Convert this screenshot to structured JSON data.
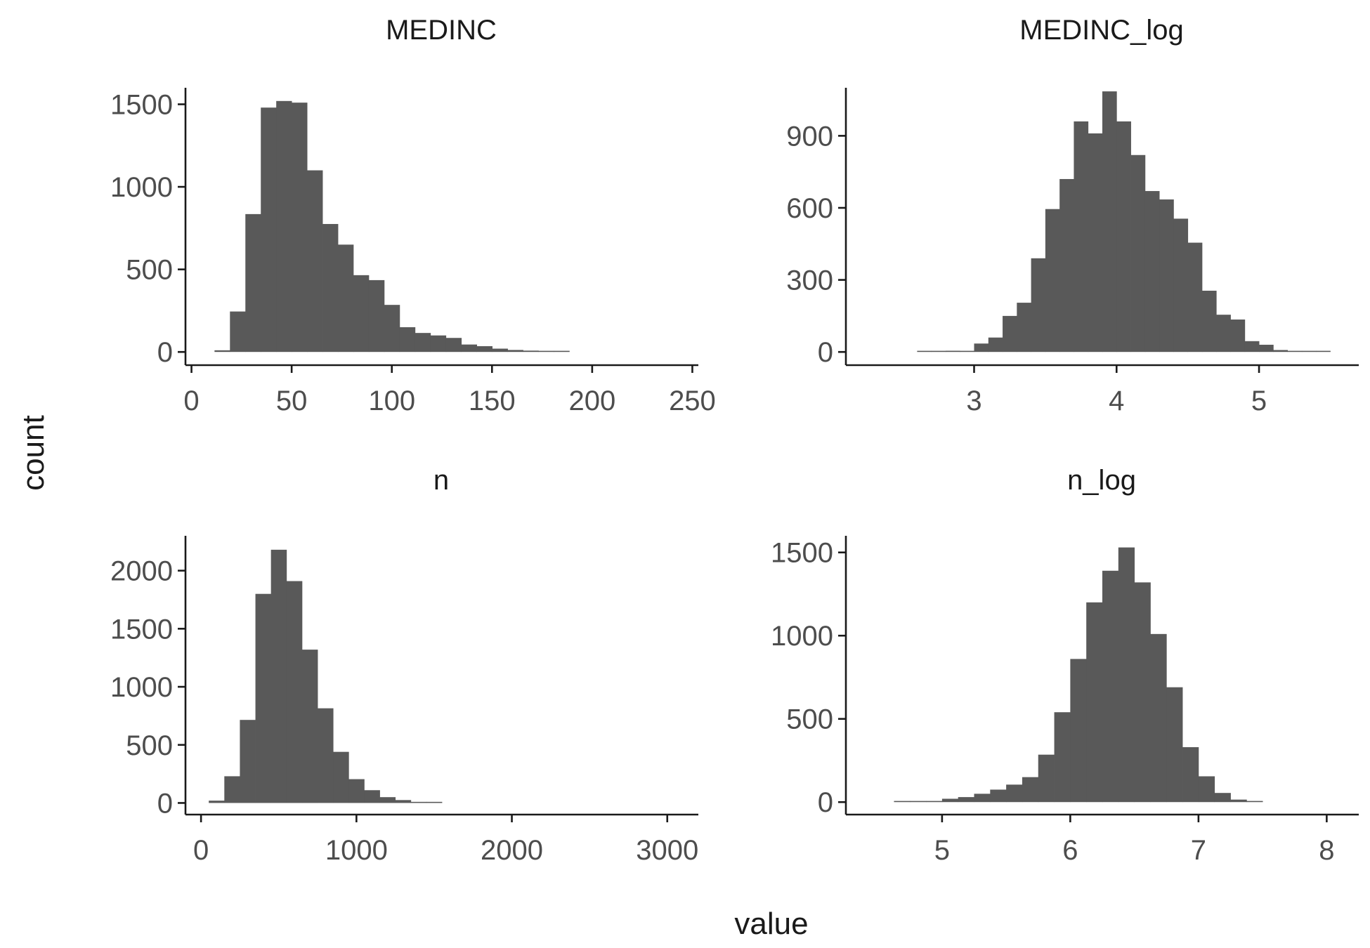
{
  "figure": {
    "ylabel": "count",
    "xlabel": "value"
  },
  "chart_data": [
    {
      "type": "bar",
      "title": "MEDINC",
      "xlim": [
        -3,
        253
      ],
      "ylim": [
        -80,
        1600
      ],
      "x_ticks": [
        0,
        50,
        100,
        150,
        200,
        250
      ],
      "y_ticks": [
        0,
        500,
        1000,
        1500
      ],
      "bin_width": 7.7,
      "bins": [
        {
          "x0": 11.5,
          "x1": 19.2,
          "count": 10
        },
        {
          "x0": 19.2,
          "x1": 26.9,
          "count": 245
        },
        {
          "x0": 26.9,
          "x1": 34.6,
          "count": 835
        },
        {
          "x0": 34.6,
          "x1": 42.3,
          "count": 1480
        },
        {
          "x0": 42.3,
          "x1": 50.0,
          "count": 1520
        },
        {
          "x0": 50.0,
          "x1": 57.7,
          "count": 1510
        },
        {
          "x0": 57.7,
          "x1": 65.4,
          "count": 1100
        },
        {
          "x0": 65.4,
          "x1": 73.1,
          "count": 775
        },
        {
          "x0": 73.1,
          "x1": 80.8,
          "count": 650
        },
        {
          "x0": 80.8,
          "x1": 88.5,
          "count": 465
        },
        {
          "x0": 88.5,
          "x1": 96.2,
          "count": 435
        },
        {
          "x0": 96.2,
          "x1": 103.9,
          "count": 285
        },
        {
          "x0": 103.9,
          "x1": 111.6,
          "count": 150
        },
        {
          "x0": 111.6,
          "x1": 119.3,
          "count": 115
        },
        {
          "x0": 119.3,
          "x1": 127.0,
          "count": 100
        },
        {
          "x0": 127.0,
          "x1": 134.7,
          "count": 85
        },
        {
          "x0": 134.7,
          "x1": 142.4,
          "count": 45
        },
        {
          "x0": 142.4,
          "x1": 150.1,
          "count": 35
        },
        {
          "x0": 150.1,
          "x1": 157.8,
          "count": 20
        },
        {
          "x0": 157.8,
          "x1": 165.5,
          "count": 12
        },
        {
          "x0": 165.5,
          "x1": 173.2,
          "count": 8
        },
        {
          "x0": 173.2,
          "x1": 180.9,
          "count": 0
        },
        {
          "x0": 180.9,
          "x1": 188.6,
          "count": 6
        }
      ]
    },
    {
      "type": "bar",
      "title": "MEDINC_log",
      "xlim": [
        2.1,
        5.7
      ],
      "ylim": [
        -55,
        1100
      ],
      "x_ticks": [
        3,
        4,
        5
      ],
      "y_ticks": [
        0,
        300,
        600,
        900
      ],
      "bin_width": 0.1,
      "bins": [
        {
          "x0": 2.6,
          "x1": 2.7,
          "count": 2
        },
        {
          "x0": 2.7,
          "x1": 2.8,
          "count": 0
        },
        {
          "x0": 2.8,
          "x1": 2.9,
          "count": 5
        },
        {
          "x0": 2.9,
          "x1": 3.0,
          "count": 3
        },
        {
          "x0": 3.0,
          "x1": 3.1,
          "count": 35
        },
        {
          "x0": 3.1,
          "x1": 3.2,
          "count": 60
        },
        {
          "x0": 3.2,
          "x1": 3.3,
          "count": 150
        },
        {
          "x0": 3.3,
          "x1": 3.4,
          "count": 205
        },
        {
          "x0": 3.4,
          "x1": 3.5,
          "count": 390
        },
        {
          "x0": 3.5,
          "x1": 3.6,
          "count": 595
        },
        {
          "x0": 3.6,
          "x1": 3.7,
          "count": 720
        },
        {
          "x0": 3.7,
          "x1": 3.8,
          "count": 960
        },
        {
          "x0": 3.8,
          "x1": 3.9,
          "count": 910
        },
        {
          "x0": 3.9,
          "x1": 4.0,
          "count": 1085
        },
        {
          "x0": 4.0,
          "x1": 4.1,
          "count": 960
        },
        {
          "x0": 4.1,
          "x1": 4.2,
          "count": 820
        },
        {
          "x0": 4.2,
          "x1": 4.3,
          "count": 670
        },
        {
          "x0": 4.3,
          "x1": 4.4,
          "count": 635
        },
        {
          "x0": 4.4,
          "x1": 4.5,
          "count": 555
        },
        {
          "x0": 4.5,
          "x1": 4.6,
          "count": 455
        },
        {
          "x0": 4.6,
          "x1": 4.7,
          "count": 255
        },
        {
          "x0": 4.7,
          "x1": 4.8,
          "count": 155
        },
        {
          "x0": 4.8,
          "x1": 4.9,
          "count": 135
        },
        {
          "x0": 4.9,
          "x1": 5.0,
          "count": 45
        },
        {
          "x0": 5.0,
          "x1": 5.1,
          "count": 30
        },
        {
          "x0": 5.1,
          "x1": 5.2,
          "count": 8
        },
        {
          "x0": 5.2,
          "x1": 5.3,
          "count": 2
        },
        {
          "x0": 5.3,
          "x1": 5.4,
          "count": 2
        },
        {
          "x0": 5.4,
          "x1": 5.5,
          "count": 1
        }
      ]
    },
    {
      "type": "bar",
      "title": "n",
      "xlim": [
        -100,
        3200
      ],
      "ylim": [
        -100,
        2300
      ],
      "x_ticks": [
        0,
        1000,
        2000,
        3000
      ],
      "y_ticks": [
        0,
        500,
        1000,
        1500,
        2000
      ],
      "bin_width": 100,
      "bins": [
        {
          "x0": 50,
          "x1": 150,
          "count": 20
        },
        {
          "x0": 150,
          "x1": 250,
          "count": 230
        },
        {
          "x0": 250,
          "x1": 350,
          "count": 715
        },
        {
          "x0": 350,
          "x1": 450,
          "count": 1800
        },
        {
          "x0": 450,
          "x1": 550,
          "count": 2180
        },
        {
          "x0": 550,
          "x1": 650,
          "count": 1910
        },
        {
          "x0": 650,
          "x1": 750,
          "count": 1320
        },
        {
          "x0": 750,
          "x1": 850,
          "count": 815
        },
        {
          "x0": 850,
          "x1": 950,
          "count": 440
        },
        {
          "x0": 950,
          "x1": 1050,
          "count": 205
        },
        {
          "x0": 1050,
          "x1": 1150,
          "count": 110
        },
        {
          "x0": 1150,
          "x1": 1250,
          "count": 50
        },
        {
          "x0": 1250,
          "x1": 1350,
          "count": 25
        },
        {
          "x0": 1350,
          "x1": 1450,
          "count": 8
        },
        {
          "x0": 1450,
          "x1": 1550,
          "count": 5
        }
      ]
    },
    {
      "type": "bar",
      "title": "n_log",
      "xlim": [
        4.25,
        8.25
      ],
      "ylim": [
        -75,
        1600
      ],
      "x_ticks": [
        5,
        6,
        7,
        8
      ],
      "y_ticks": [
        0,
        500,
        1000,
        1500
      ],
      "bin_width": 0.125,
      "bins": [
        {
          "x0": 4.625,
          "x1": 4.75,
          "count": 3
        },
        {
          "x0": 4.75,
          "x1": 4.875,
          "count": 5
        },
        {
          "x0": 4.875,
          "x1": 5.0,
          "count": 5
        },
        {
          "x0": 5.0,
          "x1": 5.125,
          "count": 20
        },
        {
          "x0": 5.125,
          "x1": 5.25,
          "count": 30
        },
        {
          "x0": 5.25,
          "x1": 5.375,
          "count": 50
        },
        {
          "x0": 5.375,
          "x1": 5.5,
          "count": 75
        },
        {
          "x0": 5.5,
          "x1": 5.625,
          "count": 105
        },
        {
          "x0": 5.625,
          "x1": 5.75,
          "count": 150
        },
        {
          "x0": 5.75,
          "x1": 5.875,
          "count": 285
        },
        {
          "x0": 5.875,
          "x1": 6.0,
          "count": 540
        },
        {
          "x0": 6.0,
          "x1": 6.125,
          "count": 860
        },
        {
          "x0": 6.125,
          "x1": 6.25,
          "count": 1200
        },
        {
          "x0": 6.25,
          "x1": 6.375,
          "count": 1390
        },
        {
          "x0": 6.375,
          "x1": 6.5,
          "count": 1530
        },
        {
          "x0": 6.5,
          "x1": 6.625,
          "count": 1320
        },
        {
          "x0": 6.625,
          "x1": 6.75,
          "count": 1010
        },
        {
          "x0": 6.75,
          "x1": 6.875,
          "count": 690
        },
        {
          "x0": 6.875,
          "x1": 7.0,
          "count": 330
        },
        {
          "x0": 7.0,
          "x1": 7.125,
          "count": 155
        },
        {
          "x0": 7.125,
          "x1": 7.25,
          "count": 55
        },
        {
          "x0": 7.25,
          "x1": 7.375,
          "count": 15
        },
        {
          "x0": 7.375,
          "x1": 7.5,
          "count": 5
        }
      ]
    }
  ]
}
